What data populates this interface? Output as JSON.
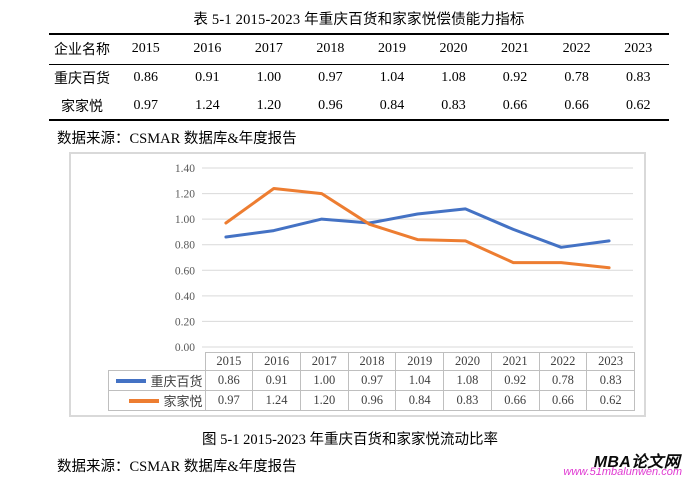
{
  "page": {
    "table_title": "表 5-1 2015-2023 年重庆百货和家家悦偿债能力指标",
    "source_note_1": "数据来源：CSMAR 数据库&年度报告",
    "figure_caption": "图 5-1 2015-2023 年重庆百货和家家悦流动比率",
    "source_note_2": "数据来源：CSMAR 数据库&年度报告"
  },
  "table": {
    "header": [
      "企业名称",
      "2015",
      "2016",
      "2017",
      "2018",
      "2019",
      "2020",
      "2021",
      "2022",
      "2023"
    ],
    "rows": [
      {
        "name": "重庆百货",
        "values": [
          "0.86",
          "0.91",
          "1.00",
          "0.97",
          "1.04",
          "1.08",
          "0.92",
          "0.78",
          "0.83"
        ]
      },
      {
        "name": "家家悦",
        "values": [
          "0.97",
          "1.24",
          "1.20",
          "0.96",
          "0.84",
          "0.83",
          "0.66",
          "0.66",
          "0.62"
        ]
      }
    ]
  },
  "chart_data": {
    "type": "line",
    "title": "",
    "categories": [
      "2015",
      "2016",
      "2017",
      "2018",
      "2019",
      "2020",
      "2021",
      "2022",
      "2023"
    ],
    "series": [
      {
        "name": "重庆百货",
        "color": "#4472C4",
        "values": [
          0.86,
          0.91,
          1.0,
          0.97,
          1.04,
          1.08,
          0.92,
          0.78,
          0.83
        ]
      },
      {
        "name": "家家悦",
        "color": "#ED7D31",
        "values": [
          0.97,
          1.24,
          1.2,
          0.96,
          0.84,
          0.83,
          0.66,
          0.66,
          0.62
        ]
      }
    ],
    "ylim": [
      0.0,
      1.4
    ],
    "ytick_step": 0.2,
    "ytick_labels": [
      "0.00",
      "0.20",
      "0.40",
      "0.60",
      "0.80",
      "1.00",
      "1.20",
      "1.40"
    ],
    "grid": true,
    "legend_position": "data-table-left",
    "gridline_color": "#D9D9D9",
    "axis_text_color": "#595959",
    "table_border_color": "#BFBFBF",
    "line_width": 3
  },
  "watermark": {
    "logo_text": "MBA论文网",
    "url": "www.51mbalunwen.com",
    "url_color": "#E038D2"
  }
}
